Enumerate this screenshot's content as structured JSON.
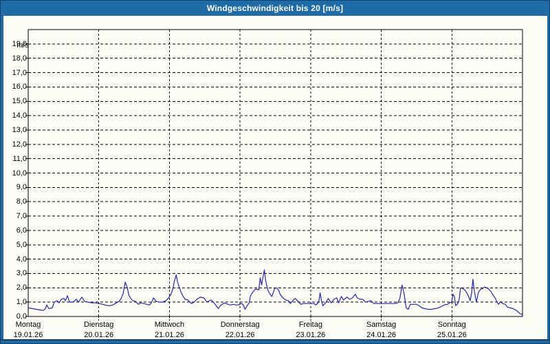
{
  "title_bar": {
    "title": "Windgeschwindigkeit bis 20 [m/s]"
  },
  "colors": {
    "frame_blue": "#1d6ca7",
    "bottom_separator_navy": "#1b3e66",
    "plot_background": "#fdfdf6",
    "grid_color": "#000000",
    "series_line_blue": "#2424c4",
    "title_text": "#ffffff",
    "label_text": "#000000"
  },
  "y_axis": {
    "unit": "m/s",
    "tick_labels": [
      "19,0",
      "18,0",
      "17,0",
      "16,0",
      "15,0",
      "14,0",
      "13,0",
      "12,0",
      "11,0",
      "10,0",
      "9,0",
      "8,0",
      "7,0",
      "6,0",
      "5,0",
      "4,0",
      "3,0",
      "2,0",
      "1,0",
      "0,0"
    ]
  },
  "x_axis": {
    "days": [
      {
        "name": "Montag",
        "date": "19.01.26"
      },
      {
        "name": "Dienstag",
        "date": "20.01.26"
      },
      {
        "name": "Mittwoch",
        "date": "21.01.26"
      },
      {
        "name": "Donnerstag",
        "date": "22.01.26"
      },
      {
        "name": "Freitag",
        "date": "23.01.26"
      },
      {
        "name": "Samstag",
        "date": "24.01.26"
      },
      {
        "name": "Sonntag",
        "date": "25.01.26"
      }
    ]
  },
  "chart_data": {
    "type": "line",
    "title": "Windgeschwindigkeit bis 20 [m/s]",
    "ylabel": "m/s",
    "ylim": [
      0,
      20
    ],
    "y_tick_step": 1.0,
    "x_range_days": [
      0,
      7
    ],
    "grid": "horizontal dashed line every 1 m/s; vertical dashed line at each day boundary",
    "legend_position": "none",
    "series": [
      {
        "name": "Windgeschwindigkeit",
        "unit": "m/s",
        "x_unit": "days since Montag 19.01.26 00:00",
        "color": "#2424c4",
        "points": [
          [
            0,
            0.6
          ],
          [
            0.059,
            0.55
          ],
          [
            0.117,
            0.5
          ],
          [
            0.176,
            0.45
          ],
          [
            0.214,
            0.42
          ],
          [
            0.244,
            0.55
          ],
          [
            0.263,
            0.8
          ],
          [
            0.293,
            0.55
          ],
          [
            0.341,
            0.6
          ],
          [
            0.37,
            1.0
          ],
          [
            0.409,
            1.1
          ],
          [
            0.439,
            0.95
          ],
          [
            0.468,
            1.2
          ],
          [
            0.507,
            1.25
          ],
          [
            0.527,
            1.1
          ],
          [
            0.556,
            1.45
          ],
          [
            0.585,
            1.0
          ],
          [
            0.634,
            1.0
          ],
          [
            0.682,
            1.2
          ],
          [
            0.712,
            1.0
          ],
          [
            0.76,
            1.35
          ],
          [
            0.799,
            1.05
          ],
          [
            0.848,
            1.0
          ],
          [
            0.897,
            0.95
          ],
          [
            0.946,
            0.95
          ],
          [
            1.004,
            0.9
          ],
          [
            1.053,
            0.85
          ],
          [
            1.102,
            0.78
          ],
          [
            1.15,
            0.75
          ],
          [
            1.199,
            0.8
          ],
          [
            1.248,
            0.95
          ],
          [
            1.287,
            1.05
          ],
          [
            1.316,
            1.25
          ],
          [
            1.345,
            1.6
          ],
          [
            1.375,
            2.4
          ],
          [
            1.404,
            2.0
          ],
          [
            1.424,
            1.5
          ],
          [
            1.453,
            1.25
          ],
          [
            1.482,
            1.1
          ],
          [
            1.521,
            1.05
          ],
          [
            1.56,
            0.85
          ],
          [
            1.599,
            0.95
          ],
          [
            1.638,
            0.9
          ],
          [
            1.677,
            0.85
          ],
          [
            1.716,
            0.8
          ],
          [
            1.745,
            0.95
          ],
          [
            1.774,
            1.3
          ],
          [
            1.813,
            1.05
          ],
          [
            1.852,
            1.0
          ],
          [
            1.901,
            1.0
          ],
          [
            1.95,
            1.1
          ],
          [
            1.989,
            1.3
          ],
          [
            2.018,
            1.5
          ],
          [
            2.047,
            1.9
          ],
          [
            2.067,
            2.4
          ],
          [
            2.096,
            2.9
          ],
          [
            2.116,
            2.4
          ],
          [
            2.135,
            2.1
          ],
          [
            2.164,
            1.7
          ],
          [
            2.194,
            1.4
          ],
          [
            2.223,
            1.2
          ],
          [
            2.262,
            1.15
          ],
          [
            2.311,
            0.9
          ],
          [
            2.35,
            1.0
          ],
          [
            2.389,
            1.2
          ],
          [
            2.437,
            1.35
          ],
          [
            2.486,
            1.3
          ],
          [
            2.535,
            1.0
          ],
          [
            2.564,
            1.1
          ],
          [
            2.593,
            1.15
          ],
          [
            2.632,
            0.95
          ],
          [
            2.662,
            0.75
          ],
          [
            2.691,
            0.55
          ],
          [
            2.73,
            0.8
          ],
          [
            2.779,
            0.95
          ],
          [
            2.827,
            0.85
          ],
          [
            2.866,
            0.8
          ],
          [
            2.905,
            0.85
          ],
          [
            2.944,
            0.8
          ],
          [
            2.983,
            0.8
          ],
          [
            3.012,
            0.9
          ],
          [
            3.042,
            0.85
          ],
          [
            3.071,
            0.5
          ],
          [
            3.1,
            0.75
          ],
          [
            3.129,
            0.95
          ],
          [
            3.149,
            1.45
          ],
          [
            3.188,
            1.75
          ],
          [
            3.217,
            1.9
          ],
          [
            3.246,
            1.9
          ],
          [
            3.266,
            1.85
          ],
          [
            3.285,
            2.7
          ],
          [
            3.305,
            2.2
          ],
          [
            3.344,
            3.25
          ],
          [
            3.363,
            2.5
          ],
          [
            3.383,
            2.05
          ],
          [
            3.402,
            1.75
          ],
          [
            3.432,
            1.5
          ],
          [
            3.451,
            1.4
          ],
          [
            3.49,
            1.95
          ],
          [
            3.519,
            2.0
          ],
          [
            3.549,
            1.8
          ],
          [
            3.568,
            1.55
          ],
          [
            3.607,
            1.3
          ],
          [
            3.646,
            1.15
          ],
          [
            3.685,
            1.1
          ],
          [
            3.714,
            0.9
          ],
          [
            3.744,
            1.1
          ],
          [
            3.783,
            1.25
          ],
          [
            3.822,
            1.05
          ],
          [
            3.861,
            0.85
          ],
          [
            3.9,
            0.9
          ],
          [
            3.939,
            0.9
          ],
          [
            3.978,
            0.9
          ],
          [
            4.017,
            0.9
          ],
          [
            4.046,
            0.9
          ],
          [
            4.075,
            0.8
          ],
          [
            4.114,
            1.0
          ],
          [
            4.134,
            1.65
          ],
          [
            4.153,
            1.1
          ],
          [
            4.173,
            0.75
          ],
          [
            4.212,
            0.95
          ],
          [
            4.251,
            1.25
          ],
          [
            4.29,
            0.95
          ],
          [
            4.329,
            1.2
          ],
          [
            4.368,
            1.3
          ],
          [
            4.397,
            0.95
          ],
          [
            4.436,
            1.4
          ],
          [
            4.465,
            1.15
          ],
          [
            4.514,
            1.35
          ],
          [
            4.553,
            1.2
          ],
          [
            4.592,
            1.3
          ],
          [
            4.631,
            1.55
          ],
          [
            4.66,
            1.3
          ],
          [
            4.699,
            1.2
          ],
          [
            4.738,
            1.2
          ],
          [
            4.777,
            1.0
          ],
          [
            4.816,
            1.05
          ],
          [
            4.855,
            1.1
          ],
          [
            4.894,
            0.9
          ],
          [
            4.933,
            0.9
          ],
          [
            4.972,
            0.9
          ],
          [
            5.011,
            0.9
          ],
          [
            5.07,
            0.9
          ],
          [
            5.128,
            0.9
          ],
          [
            5.187,
            0.9
          ],
          [
            5.236,
            0.95
          ],
          [
            5.265,
            1.3
          ],
          [
            5.294,
            2.2
          ],
          [
            5.323,
            1.6
          ],
          [
            5.353,
            0.6
          ],
          [
            5.382,
            0.5
          ],
          [
            5.411,
            0.85
          ],
          [
            5.46,
            0.85
          ],
          [
            5.499,
            0.85
          ],
          [
            5.538,
            0.75
          ],
          [
            5.577,
            0.6
          ],
          [
            5.616,
            0.55
          ],
          [
            5.664,
            0.5
          ],
          [
            5.713,
            0.5
          ],
          [
            5.762,
            0.55
          ],
          [
            5.811,
            0.6
          ],
          [
            5.85,
            0.7
          ],
          [
            5.889,
            0.8
          ],
          [
            5.938,
            0.85
          ],
          [
            5.967,
            0.95
          ],
          [
            5.996,
            1.0
          ],
          [
            6.016,
            1.55
          ],
          [
            6.035,
            1.4
          ],
          [
            6.055,
            0.75
          ],
          [
            6.084,
            0.9
          ],
          [
            6.103,
            1.2
          ],
          [
            6.123,
            2.0
          ],
          [
            6.152,
            1.95
          ],
          [
            6.181,
            1.85
          ],
          [
            6.211,
            1.65
          ],
          [
            6.24,
            1.35
          ],
          [
            6.259,
            1.1
          ],
          [
            6.279,
            1.6
          ],
          [
            6.298,
            2.6
          ],
          [
            6.318,
            1.8
          ],
          [
            6.347,
            1.0
          ],
          [
            6.376,
            1.7
          ],
          [
            6.406,
            1.9
          ],
          [
            6.435,
            1.95
          ],
          [
            6.464,
            2.05
          ],
          [
            6.493,
            2.0
          ],
          [
            6.523,
            1.9
          ],
          [
            6.552,
            1.75
          ],
          [
            6.581,
            1.5
          ],
          [
            6.611,
            1.3
          ],
          [
            6.64,
            1.0
          ],
          [
            6.659,
            0.85
          ],
          [
            6.689,
            1.05
          ],
          [
            6.718,
            0.9
          ],
          [
            6.757,
            0.85
          ],
          [
            6.786,
            0.65
          ],
          [
            6.825,
            0.6
          ],
          [
            6.864,
            0.55
          ],
          [
            6.903,
            0.45
          ],
          [
            6.932,
            0.35
          ],
          [
            6.962,
            0.2
          ],
          [
            6.991,
            0.15
          ]
        ]
      }
    ]
  }
}
